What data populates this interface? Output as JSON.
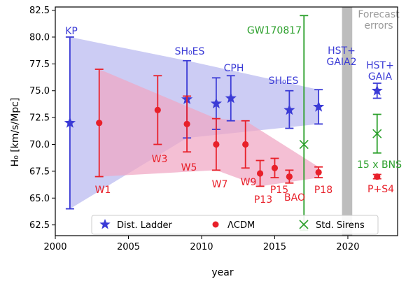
{
  "chart_data": {
    "type": "scatter",
    "xlabel": "year",
    "ylabel": "H₀ [km/s/Mpc]",
    "xlim": [
      2000,
      2023.4
    ],
    "ylim": [
      61.5,
      82.8
    ],
    "x_ticks": [
      2000,
      2005,
      2010,
      2015,
      2020
    ],
    "y_ticks": [
      62.5,
      65.0,
      67.5,
      70.0,
      72.5,
      75.0,
      77.5,
      80.0,
      82.5
    ],
    "forecast_band": {
      "from": 2019.6,
      "to": 2020.3,
      "label_lines": [
        "Forecast",
        "errors"
      ]
    },
    "colors": {
      "ladder": "#3b3bd6",
      "lcdm": "#e8202a",
      "sirens": "#2ca02c",
      "ladder_band": "#b9b9f0",
      "lcdm_band": "#f0a6c4",
      "forecast": "#bdbdbd"
    },
    "series": [
      {
        "name": "Dist. Ladder",
        "marker": "star",
        "points": [
          {
            "x": 2001,
            "y": 72.0,
            "lo": 64.0,
            "hi": 80.0,
            "label": "KP"
          },
          {
            "x": 2009,
            "y": 74.2,
            "lo": 70.6,
            "hi": 77.8,
            "label": "SH₀ES"
          },
          {
            "x": 2011,
            "y": 73.8,
            "lo": 71.4,
            "hi": 76.2
          },
          {
            "x": 2012,
            "y": 74.3,
            "lo": 72.2,
            "hi": 76.4,
            "label": "CPH"
          },
          {
            "x": 2016,
            "y": 73.2,
            "lo": 71.5,
            "hi": 75.0,
            "label": "SH₀ES"
          },
          {
            "x": 2018,
            "y": 73.5,
            "lo": 71.9,
            "hi": 75.1,
            "label": "HST+ GAIA2"
          },
          {
            "x": 2022,
            "y": 75.0,
            "lo": 74.3,
            "hi": 75.7,
            "label": "HST+ GAIA"
          }
        ]
      },
      {
        "name": "ΛCDM",
        "marker": "circle",
        "points": [
          {
            "x": 2003,
            "y": 72.0,
            "lo": 67.0,
            "hi": 77.0,
            "label": "W1"
          },
          {
            "x": 2007,
            "y": 73.2,
            "lo": 70.0,
            "hi": 76.4,
            "label": "W3"
          },
          {
            "x": 2009,
            "y": 71.9,
            "lo": 69.3,
            "hi": 74.5,
            "label": "W5"
          },
          {
            "x": 2011,
            "y": 70.0,
            "lo": 67.6,
            "hi": 72.4,
            "label": "W7"
          },
          {
            "x": 2013,
            "y": 70.0,
            "lo": 67.8,
            "hi": 72.2,
            "label": "W9"
          },
          {
            "x": 2014,
            "y": 67.3,
            "lo": 66.1,
            "hi": 68.5,
            "label": "P13"
          },
          {
            "x": 2015,
            "y": 67.8,
            "lo": 66.9,
            "hi": 68.7,
            "label": "P15"
          },
          {
            "x": 2016,
            "y": 67.0,
            "lo": 66.4,
            "hi": 67.6,
            "label": "BAO"
          },
          {
            "x": 2018,
            "y": 67.4,
            "lo": 66.9,
            "hi": 67.9,
            "label": "P18"
          },
          {
            "x": 2022,
            "y": 67.0,
            "lo": 66.8,
            "hi": 67.2,
            "label": "P+S4"
          }
        ]
      },
      {
        "name": "Std. Sirens",
        "marker": "x",
        "points": [
          {
            "x": 2017,
            "y": 70.0,
            "lo": 62.0,
            "hi": 82.0,
            "label": "GW170817"
          },
          {
            "x": 2022,
            "y": 71.0,
            "lo": 69.2,
            "hi": 72.8,
            "label": "15 x BNS"
          }
        ]
      }
    ],
    "bands": [
      {
        "series": "Dist. Ladder",
        "upper": [
          [
            2001,
            80.0
          ],
          [
            2009,
            77.8
          ],
          [
            2018,
            75.1
          ]
        ],
        "lower": [
          [
            2001,
            64.0
          ],
          [
            2009,
            70.6
          ],
          [
            2018,
            71.9
          ]
        ]
      },
      {
        "series": "ΛCDM",
        "upper": [
          [
            2003,
            77.0
          ],
          [
            2011,
            72.4
          ],
          [
            2013,
            72.2
          ],
          [
            2018,
            67.9
          ]
        ],
        "lower": [
          [
            2003,
            67.0
          ],
          [
            2011,
            67.6
          ],
          [
            2014,
            66.1
          ],
          [
            2018,
            66.9
          ]
        ]
      }
    ],
    "legend": {
      "placement": "bottom",
      "entries": [
        "Dist. Ladder",
        "ΛCDM",
        "Std. Sirens"
      ]
    }
  }
}
